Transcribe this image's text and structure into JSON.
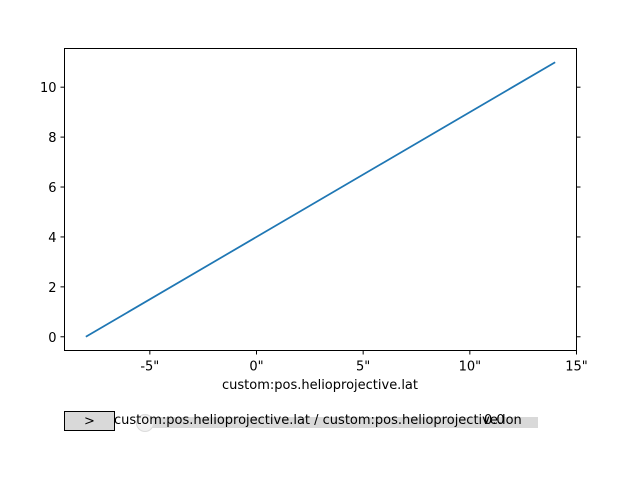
{
  "chart_data": {
    "type": "line",
    "xlabel": "custom:pos.helioprojective.lat",
    "ylabel": "",
    "title": "",
    "xlim": [
      -9,
      15
    ],
    "ylim": [
      -0.55,
      11.55
    ],
    "x_ticks": [
      -5,
      0,
      5,
      10,
      15
    ],
    "x_tick_labels": [
      "-5\"",
      "0\"",
      "5\"",
      "10\"",
      "15\""
    ],
    "y_ticks": [
      0,
      2,
      4,
      6,
      8,
      10
    ],
    "y_tick_labels": [
      "0",
      "2",
      "4",
      "6",
      "8",
      "10"
    ],
    "grid": false,
    "series": [
      {
        "color": "#1f77b4",
        "x": [
          -8,
          14
        ],
        "y": [
          0,
          11
        ]
      }
    ]
  },
  "controls": {
    "toggle_label": ">",
    "slider_label": "custom:pos.helioprojective.lat / custom:pos.helioprojective.lon",
    "slider_value": "0.0",
    "slider_fraction": 0.0
  }
}
